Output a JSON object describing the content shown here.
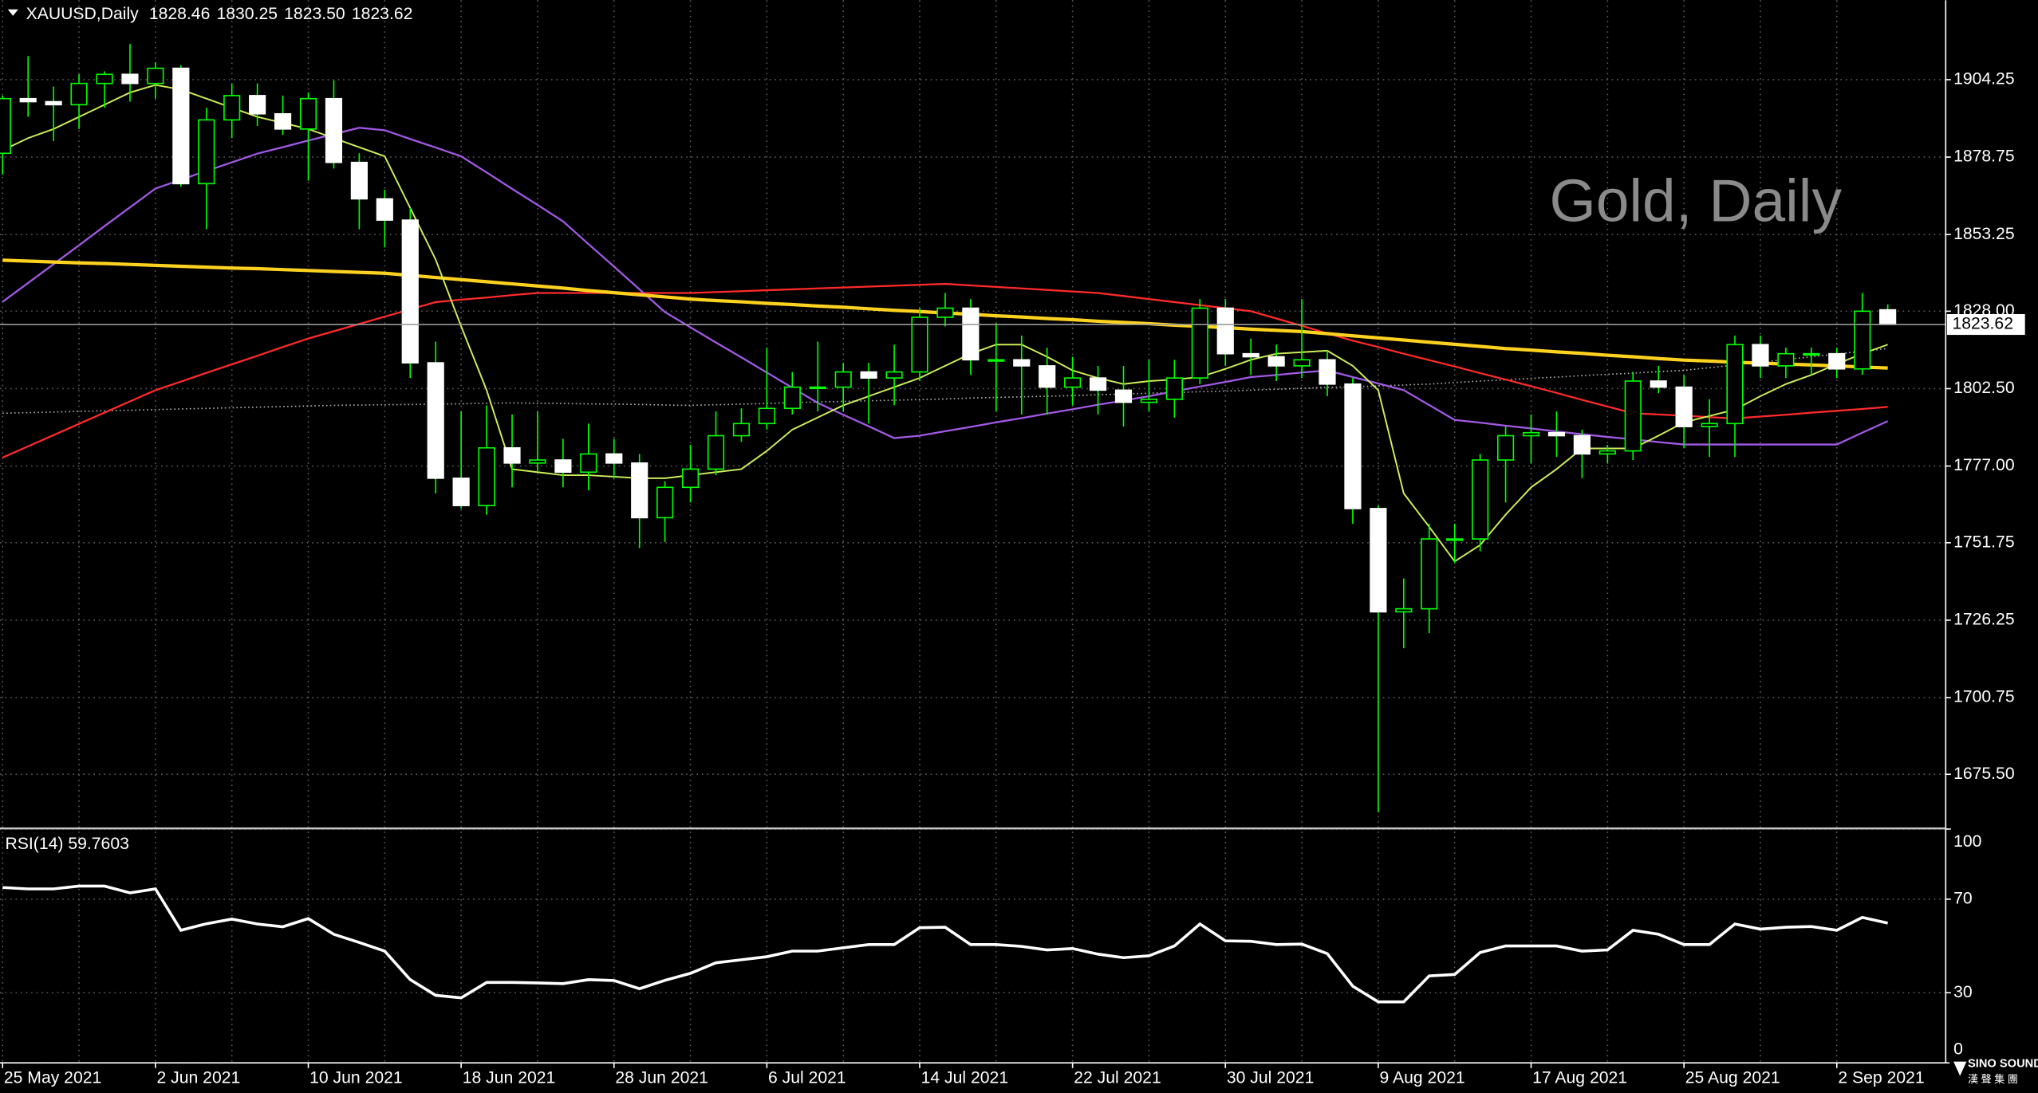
{
  "chart_data": [
    {
      "type": "candlestick",
      "title": "XAUUSD,Daily",
      "ohlc_labels": [
        "1828.46",
        "1830.25",
        "1823.50",
        "1823.62"
      ],
      "watermark": "Gold, Daily",
      "categories": [
        "25 May 2021",
        null,
        null,
        null,
        null,
        null,
        "2 Jun 2021",
        null,
        null,
        null,
        null,
        null,
        "10 Jun 2021",
        null,
        null,
        null,
        null,
        null,
        "18 Jun 2021",
        null,
        null,
        null,
        null,
        null,
        "28 Jun 2021",
        null,
        null,
        null,
        null,
        null,
        "6 Jul 2021",
        null,
        null,
        null,
        null,
        null,
        "14 Jul 2021",
        null,
        null,
        null,
        null,
        null,
        "22 Jul 2021",
        null,
        null,
        null,
        null,
        null,
        "30 Jul 2021",
        null,
        null,
        null,
        null,
        null,
        "9 Aug 2021",
        null,
        null,
        null,
        null,
        null,
        "17 Aug 2021",
        null,
        null,
        null,
        null,
        null,
        "25 Aug 2021",
        null,
        null,
        null,
        null,
        null,
        "2 Sep 2021",
        null,
        null
      ],
      "open": [
        1880,
        1898,
        1897,
        1896,
        1903,
        1906,
        1903,
        1908,
        1870,
        1891,
        1899,
        1893,
        1888,
        1898,
        1877,
        1865,
        1858,
        1811,
        1773,
        1764,
        1783,
        1778,
        1779,
        1775,
        1781,
        1778,
        1760,
        1770,
        1776,
        1787,
        1791,
        1796,
        1803,
        1803,
        1808,
        1806,
        1808,
        1826,
        1829,
        1812,
        1812,
        1810,
        1803,
        1806,
        1802,
        1798,
        1799,
        1806,
        1829,
        1814,
        1813,
        1810,
        1812,
        1804,
        1763,
        1729,
        1730,
        1753,
        1753,
        1779,
        1787,
        1788,
        1787,
        1781,
        1782,
        1805,
        1803,
        1790,
        1791,
        1817,
        1810,
        1814,
        1814,
        1809,
        1828.46
      ],
      "high": [
        1899,
        1912,
        1902,
        1906,
        1907,
        1916,
        1910,
        1909,
        1895,
        1903,
        1903,
        1899,
        1900,
        1904,
        1880,
        1868,
        1862,
        1818,
        1795,
        1797,
        1794,
        1795,
        1786,
        1791,
        1786,
        1781,
        1772,
        1784,
        1795,
        1796,
        1816,
        1808,
        1818,
        1811,
        1811,
        1817,
        1829,
        1834,
        1832,
        1824,
        1820,
        1816,
        1813,
        1810,
        1810,
        1812,
        1812,
        1832,
        1832,
        1819,
        1817,
        1832,
        1815,
        1806,
        1764,
        1740,
        1758,
        1758,
        1781,
        1790,
        1794,
        1795,
        1789,
        1784,
        1808,
        1810,
        1807,
        1799,
        1820,
        1820,
        1816,
        1816,
        1816,
        1834,
        1830.25
      ],
      "low": [
        1873,
        1892,
        1884,
        1888,
        1895,
        1897,
        1898,
        1869,
        1855,
        1885,
        1889,
        1886,
        1871,
        1875,
        1855,
        1849,
        1806,
        1768,
        1763,
        1761,
        1770,
        1775,
        1770,
        1769,
        1773,
        1750,
        1752,
        1765,
        1774,
        1785,
        1789,
        1794,
        1795,
        1795,
        1791,
        1797,
        1805,
        1823,
        1807,
        1795,
        1794,
        1794,
        1797,
        1794,
        1790,
        1795,
        1793,
        1804,
        1810,
        1807,
        1805,
        1806,
        1800,
        1758,
        1663,
        1717,
        1722,
        1745,
        1749,
        1765,
        1778,
        1780,
        1773,
        1778,
        1779,
        1801,
        1783,
        1780,
        1780,
        1806,
        1806,
        1807,
        1806,
        1807,
        1823.5
      ],
      "close": [
        1898,
        1897,
        1896,
        1903,
        1906,
        1903,
        1908,
        1870,
        1891,
        1899,
        1893,
        1888,
        1898,
        1877,
        1865,
        1858,
        1811,
        1773,
        1764,
        1783,
        1778,
        1779,
        1775,
        1781,
        1778,
        1760,
        1770,
        1776,
        1787,
        1791,
        1796,
        1803,
        1803,
        1808,
        1806,
        1808,
        1826,
        1829,
        1812,
        1812,
        1810,
        1803,
        1806,
        1802,
        1798,
        1799,
        1806,
        1829,
        1814,
        1813,
        1810,
        1812,
        1804,
        1763,
        1729,
        1730,
        1753,
        1753,
        1779,
        1787,
        1788,
        1787,
        1781,
        1782,
        1805,
        1803,
        1790,
        1791,
        1817,
        1810,
        1814,
        1814,
        1809,
        1828,
        1823.62
      ],
      "bull_color": "#000000",
      "bear_color": "#ffffff",
      "wick_color": "#00ff00",
      "lines": [
        {
          "color": "#b0b0b0",
          "dashed": true,
          "width": 1,
          "values": [
            1794.4,
            1794.6,
            1794.8,
            1795.0,
            1795.2,
            1795.4,
            1795.6,
            1795.8,
            1796.0,
            1796.2,
            1796.4,
            1796.6,
            1796.8,
            1797.0,
            1797.1,
            1797.2,
            1797.3,
            1797.4,
            1797.5,
            1797.7,
            1797.8,
            1797.7,
            1797.6,
            1797.5,
            1797.4,
            1797.3,
            1797.1,
            1797.0,
            1797.2,
            1797.4,
            1797.6,
            1797.9,
            1798.1,
            1798.3,
            1798.5,
            1798.7,
            1798.9,
            1799.1,
            1799.4,
            1799.6,
            1799.8,
            1800.0,
            1800.2,
            1800.5,
            1800.7,
            1801.0,
            1801.2,
            1801.5,
            1801.7,
            1802.0,
            1802.3,
            1802.6,
            1802.9,
            1803.1,
            1803.4,
            1803.7,
            1804.0,
            1804.5,
            1805.0,
            1805.4,
            1805.9,
            1806.3,
            1806.8,
            1807.2,
            1807.6,
            1808.1,
            1808.5,
            1809.4,
            1810.3,
            1811.2,
            1812.1,
            1813.0,
            1813.9,
            1814.8,
            1815.7
          ]
        },
        {
          "color": "#ff2a2a",
          "dashed": false,
          "width": 1.4,
          "values": [
            1779.8,
            1783.5,
            1787.2,
            1790.9,
            1794.6,
            1798.3,
            1802.0,
            1804.8,
            1807.7,
            1810.5,
            1813.3,
            1816.2,
            1819.0,
            1821.4,
            1823.8,
            1826.2,
            1828.6,
            1831.0,
            1831.8,
            1832.5,
            1833.3,
            1834.0,
            1834.0,
            1834.0,
            1834.0,
            1834.0,
            1834.0,
            1834.0,
            1834.3,
            1834.6,
            1834.9,
            1835.2,
            1835.5,
            1835.8,
            1836.1,
            1836.4,
            1836.7,
            1837.0,
            1836.5,
            1836.0,
            1835.5,
            1835.0,
            1834.5,
            1834.0,
            1833.0,
            1832.0,
            1831.0,
            1830.0,
            1829.0,
            1828.0,
            1825.6,
            1823.2,
            1820.7,
            1818.3,
            1816.2,
            1814.0,
            1811.9,
            1809.8,
            1807.6,
            1805.5,
            1803.3,
            1801.1,
            1798.8,
            1796.6,
            1794.4,
            1794.0,
            1793.6,
            1793.1,
            1792.7,
            1793.3,
            1793.9,
            1794.6,
            1795.2,
            1795.8,
            1796.5
          ]
        },
        {
          "color": "#a259e6",
          "dashed": false,
          "width": 1.4,
          "values": [
            1831.1,
            1837.3,
            1843.5,
            1849.7,
            1856.0,
            1862.2,
            1868.4,
            1871.3,
            1874.2,
            1877.0,
            1879.9,
            1882.0,
            1884.2,
            1886.3,
            1888.4,
            1887.6,
            1884.7,
            1881.9,
            1879.0,
            1873.7,
            1868.3,
            1863.0,
            1857.6,
            1850.1,
            1842.7,
            1835.2,
            1827.7,
            1822.7,
            1817.7,
            1812.8,
            1807.8,
            1802.8,
            1797.8,
            1793.9,
            1790.1,
            1786.2,
            1787.0,
            1788.5,
            1789.9,
            1791.4,
            1792.8,
            1794.3,
            1795.7,
            1797.2,
            1798.6,
            1800.0,
            1801.6,
            1803.2,
            1804.7,
            1806.3,
            1807.0,
            1807.8,
            1808.5,
            1806.3,
            1804.2,
            1802.0,
            1797.1,
            1792.2,
            1791.3,
            1790.3,
            1789.4,
            1788.4,
            1787.5,
            1786.6,
            1785.8,
            1784.9,
            1784.1,
            1784.1,
            1784.1,
            1784.1,
            1784.1,
            1784.1,
            1784.1,
            1788.0,
            1791.8
          ]
        },
        {
          "color": "#ffd21f",
          "dashed": false,
          "width": 2.6,
          "values": [
            1844.8,
            1844.5,
            1844.2,
            1843.9,
            1843.7,
            1843.4,
            1843.1,
            1842.8,
            1842.5,
            1842.2,
            1842.0,
            1841.7,
            1841.4,
            1841.1,
            1840.8,
            1840.5,
            1839.8,
            1839.1,
            1838.4,
            1837.7,
            1837.0,
            1836.3,
            1835.6,
            1834.8,
            1834.1,
            1833.4,
            1832.7,
            1832.0,
            1831.5,
            1831.1,
            1830.6,
            1830.2,
            1829.7,
            1829.3,
            1828.8,
            1828.3,
            1827.9,
            1827.4,
            1827.0,
            1826.5,
            1826.1,
            1825.6,
            1825.2,
            1824.7,
            1824.3,
            1823.9,
            1823.4,
            1823.0,
            1822.6,
            1822.1,
            1821.7,
            1821.3,
            1820.6,
            1819.9,
            1819.2,
            1818.5,
            1817.8,
            1817.1,
            1816.4,
            1815.7,
            1815.2,
            1814.6,
            1814.1,
            1813.5,
            1813.0,
            1812.4,
            1811.9,
            1811.6,
            1811.2,
            1810.9,
            1810.6,
            1810.3,
            1810.0,
            1809.6,
            1809.3
          ]
        },
        {
          "color": "#cdee5a",
          "dashed": false,
          "width": 1.2,
          "values": [
            1881,
            1885,
            1888,
            1892,
            1896,
            1900,
            1902.5,
            1901,
            1898,
            1895,
            1892,
            1890,
            1888,
            1885,
            1882,
            1879,
            1862,
            1845,
            1823,
            1802,
            1776,
            1775,
            1774,
            1774,
            1773.5,
            1773,
            1773,
            1774,
            1775,
            1776,
            1782,
            1789,
            1793,
            1797,
            1800,
            1803,
            1806,
            1810,
            1814,
            1817,
            1817,
            1813,
            1808.5,
            1806,
            1804,
            1805,
            1805.5,
            1806.3,
            1809,
            1812,
            1814,
            1814.5,
            1815,
            1810,
            1802,
            1768,
            1757,
            1745.6,
            1751,
            1761,
            1770,
            1776,
            1782.8,
            1782.8,
            1782.8,
            1787,
            1791.4,
            1793.5,
            1795.6,
            1800,
            1804,
            1807,
            1810.6,
            1814,
            1817
          ]
        }
      ],
      "ylim": [
        1657.9,
        1930.4
      ],
      "yticks": [
        {
          "value": 1675.5,
          "label": "1675.50"
        },
        1700.75,
        1726.25,
        1751.75,
        {
          "value": 1777,
          "label": "1777.00"
        },
        {
          "value": 1802.5,
          "label": "1802.50"
        },
        {
          "value": 1828,
          "label": "1828.00"
        },
        1853.25,
        1878.75,
        1904.25
      ],
      "grid": true
    },
    {
      "type": "line",
      "title": "RSI(14) 59.7603",
      "color": "#ffffff",
      "values": [
        75,
        74.4,
        74.4,
        75.6,
        75.6,
        72.7,
        74.4,
        56.7,
        59.5,
        61.5,
        59.4,
        58.2,
        61.7,
        55,
        51.5,
        47.8,
        35.6,
        28.9,
        27.8,
        34.4,
        34.4,
        34.2,
        33.9,
        35.6,
        35.2,
        31.7,
        35.3,
        38.3,
        42.8,
        44.1,
        45.4,
        47.8,
        47.8,
        49.2,
        50.6,
        50.6,
        57.8,
        58.0,
        50.6,
        50.6,
        49.8,
        48.3,
        48.9,
        46.5,
        45.0,
        45.8,
        50.0,
        59.4,
        52.2,
        52.0,
        50.6,
        50.8,
        46.7,
        32.8,
        26.1,
        26.1,
        37.2,
        37.8,
        47.2,
        50.0,
        50.0,
        50.0,
        47.8,
        48.3,
        56.7,
        55.0,
        50.6,
        50.6,
        59.4,
        57.2,
        58.0,
        58.3,
        56.7,
        62.2,
        59.76
      ],
      "ylim": [
        0,
        100
      ],
      "yticks": [
        0,
        30,
        70,
        100
      ],
      "grid": true
    }
  ],
  "logo": {
    "name": "SINO SOUND",
    "subtitle": "漢 聲 集 團"
  }
}
